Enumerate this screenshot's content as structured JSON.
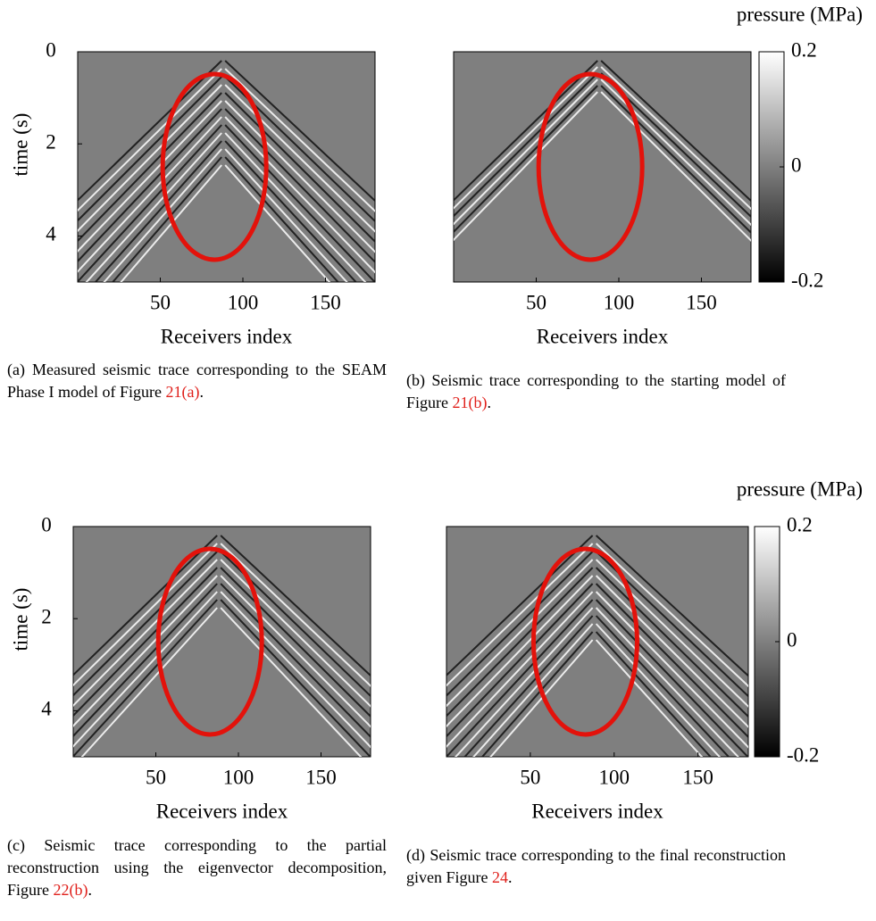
{
  "panels": [
    {
      "ylabel": "time (s)",
      "yticks": [
        0,
        2,
        4
      ],
      "ylim": [
        0,
        5
      ],
      "xticks": [
        50,
        100,
        150
      ],
      "xlim": [
        0,
        180
      ],
      "xlabel": "Receivers index",
      "caption": {
        "label": "(a)",
        "text": "Measured seismic trace corresponding to the SEAM Phase I model of Figure",
        "ref": "21(a)",
        "end": "."
      }
    },
    {
      "xticks": [
        50,
        100,
        150
      ],
      "xlim": [
        0,
        180
      ],
      "xlabel": "Receivers index",
      "colorbar": {
        "title": "pressure (MPa)",
        "ticks": [
          0.2,
          0,
          -0.2
        ],
        "lim": [
          -0.2,
          0.2
        ]
      },
      "caption": {
        "label": "(b)",
        "text": "Seismic trace corresponding to the starting model of Figure",
        "ref": "21(b)",
        "end": "."
      }
    },
    {
      "ylabel": "time (s)",
      "yticks": [
        0,
        2,
        4
      ],
      "ylim": [
        0,
        5
      ],
      "xticks": [
        50,
        100,
        150
      ],
      "xlim": [
        0,
        180
      ],
      "xlabel": "Receivers index",
      "caption": {
        "label": "(c)",
        "text": "Seismic trace corresponding to the partial reconstruction using the eigenvector decomposition, Figure",
        "ref": "22(b)",
        "end": "."
      }
    },
    {
      "xticks": [
        50,
        100,
        150
      ],
      "xlim": [
        0,
        180
      ],
      "xlabel": "Receivers index",
      "colorbar": {
        "title": "pressure (MPa)",
        "ticks": [
          0.2,
          0,
          -0.2
        ],
        "lim": [
          -0.2,
          0.2
        ]
      },
      "caption": {
        "label": "(d)",
        "text": "Seismic trace corresponding to the final reconstruction given Figure",
        "ref": "24",
        "end": "."
      }
    }
  ]
}
